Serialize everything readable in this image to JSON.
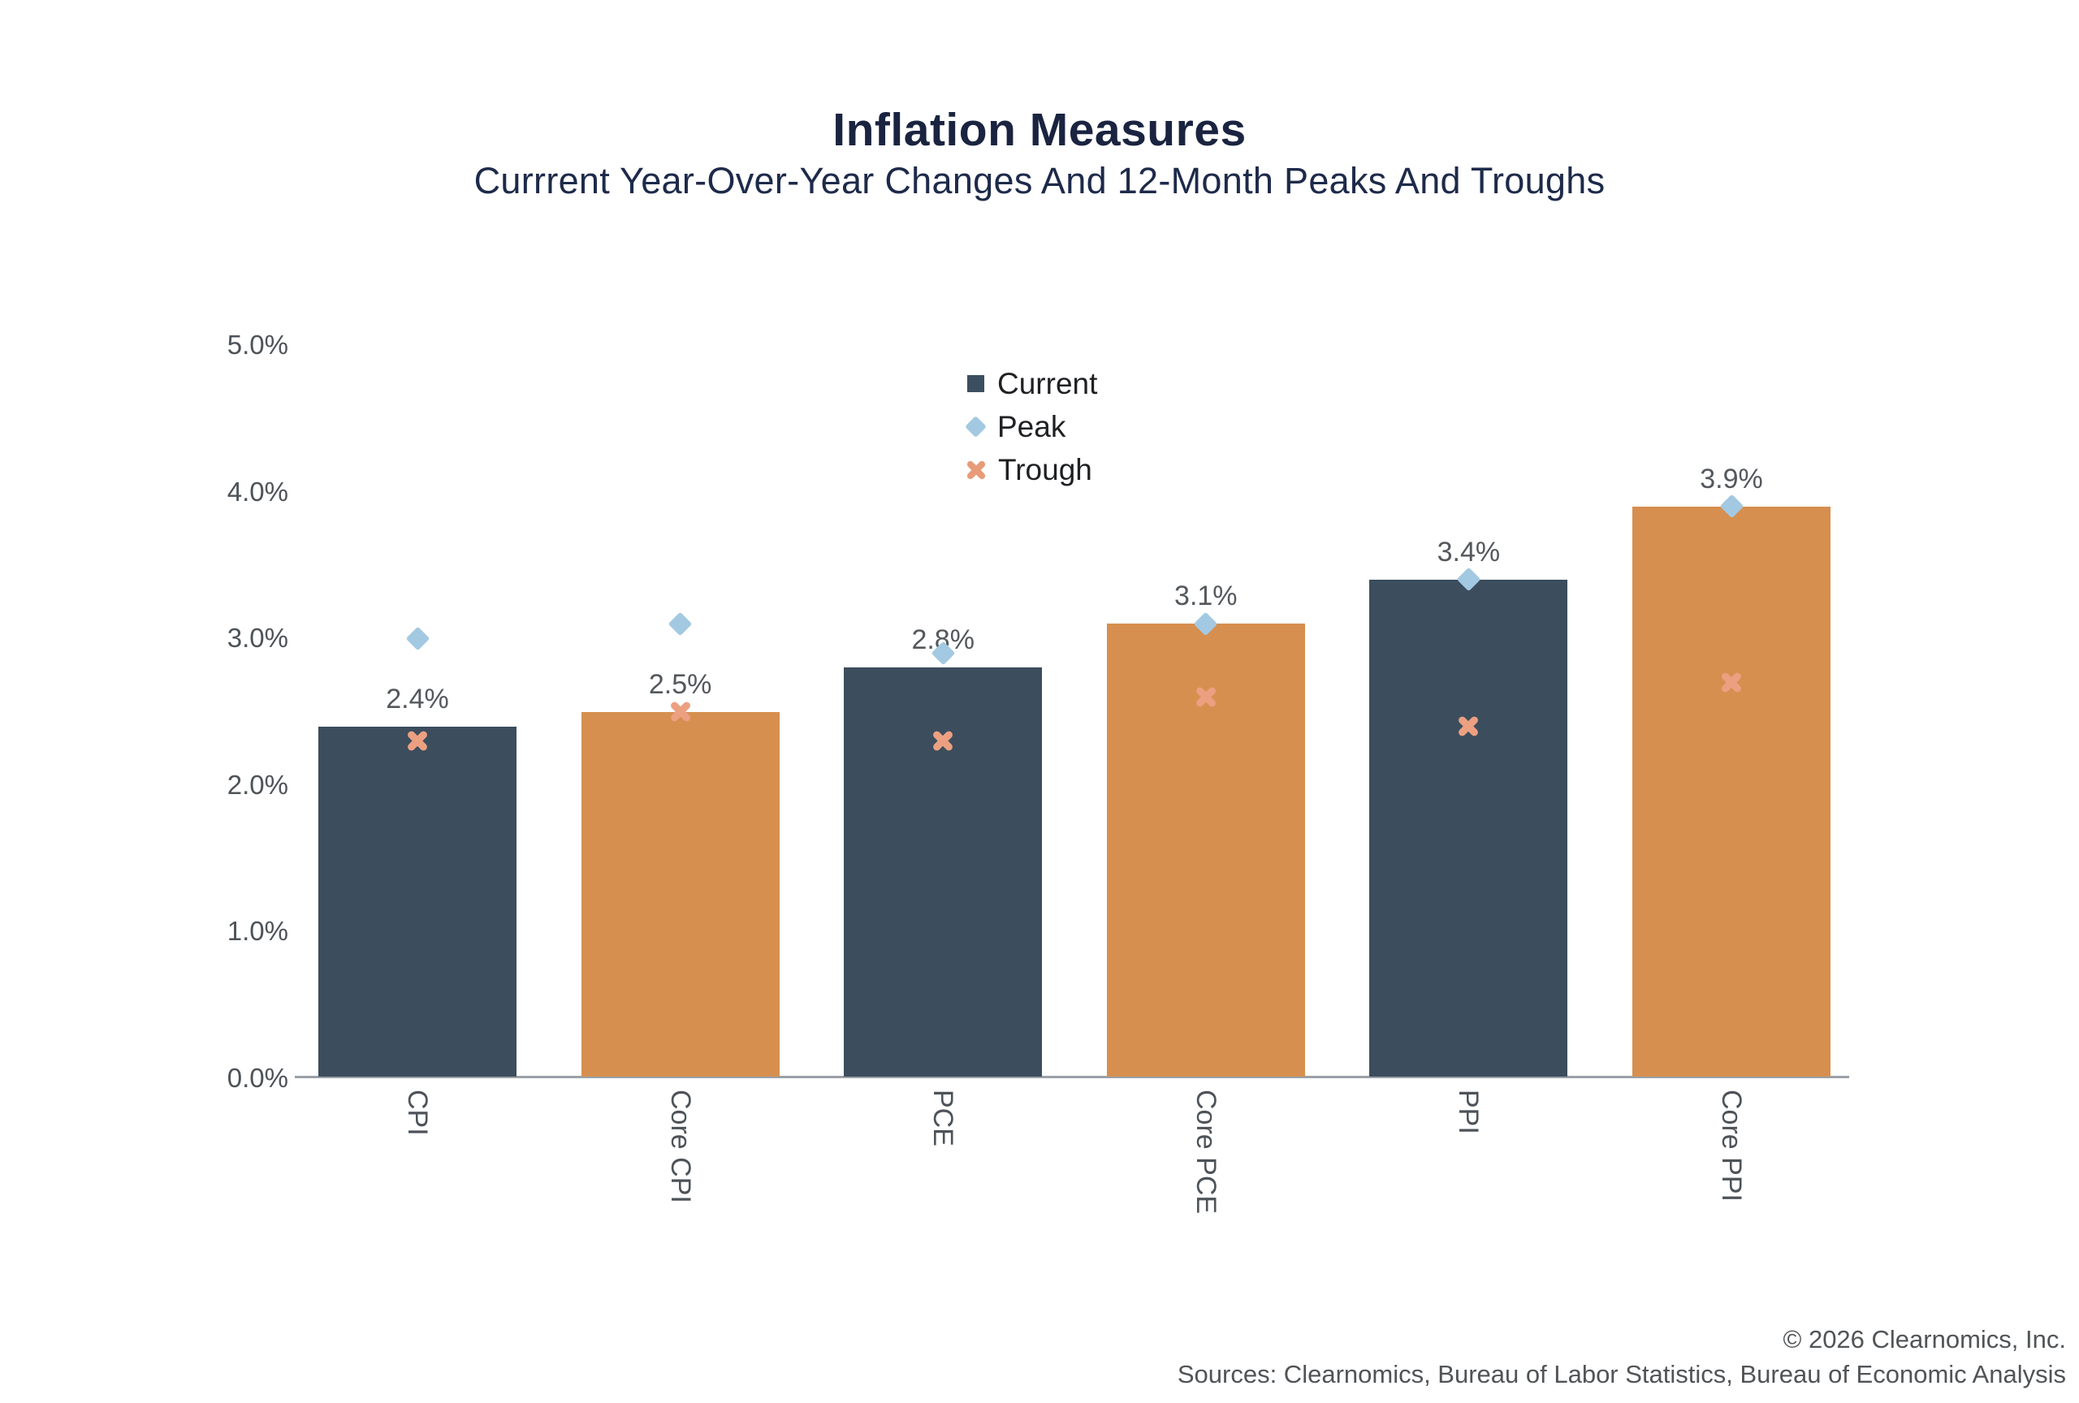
{
  "title": "Inflation Measures",
  "subtitle": "Currrent Year-Over-Year Changes And 12-Month Peaks And Troughs",
  "footer": {
    "copyright": "© 2026 Clearnomics, Inc.",
    "sources": "Sources: Clearnomics, Bureau of Labor Statistics, Bureau of Economic Analysis"
  },
  "colors": {
    "title_navy": "#1a2440",
    "bar_dark": "#3c4d5d",
    "bar_orange": "#d68f4f",
    "peak_blue": "#a3c9e2",
    "trough_salmon": "#eca081",
    "axis_line": "#9aa1a8",
    "tick_gray": "#4d5358",
    "value_label_gray": "#54585d",
    "footer_gray": "#515457"
  },
  "chart_data": {
    "type": "bar",
    "title": "Inflation Measures",
    "subtitle": "Currrent Year-Over-Year Changes And 12-Month Peaks And Troughs",
    "categories": [
      "CPI",
      "Core CPI",
      "PCE",
      "Core PCE",
      "PPI",
      "Core PPI"
    ],
    "series": [
      {
        "name": "Current",
        "type": "bar",
        "marker": "square",
        "values": [
          2.4,
          2.5,
          2.8,
          3.1,
          3.4,
          3.9
        ]
      },
      {
        "name": "Peak",
        "type": "scatter",
        "marker": "diamond",
        "values": [
          3.0,
          3.1,
          2.9,
          3.1,
          3.4,
          3.9
        ]
      },
      {
        "name": "Trough",
        "type": "scatter",
        "marker": "x",
        "values": [
          2.3,
          2.5,
          2.3,
          2.6,
          2.4,
          2.7
        ]
      }
    ],
    "value_labels": [
      "2.4%",
      "2.5%",
      "2.8%",
      "3.1%",
      "3.4%",
      "3.9%"
    ],
    "bar_color_pattern": [
      "#3c4d5d",
      "#d68f4f"
    ],
    "xlabel": "",
    "ylabel": "",
    "ylim": [
      0,
      5
    ],
    "yticks": [
      {
        "v": 0,
        "label": "0.0%"
      },
      {
        "v": 1,
        "label": "1.0%"
      },
      {
        "v": 2,
        "label": "2.0%"
      },
      {
        "v": 3,
        "label": "3.0%"
      },
      {
        "v": 4,
        "label": "4.0%"
      },
      {
        "v": 5,
        "label": "5.0%"
      }
    ],
    "grid": "off",
    "legend": [
      {
        "label": "Current",
        "marker": "square",
        "color": "#3c4f60"
      },
      {
        "label": "Peak",
        "marker": "diamond",
        "color": "#a3c9e2"
      },
      {
        "label": "Trough",
        "marker": "x",
        "color": "#e89b77"
      }
    ],
    "legend_position": "upper-center"
  }
}
